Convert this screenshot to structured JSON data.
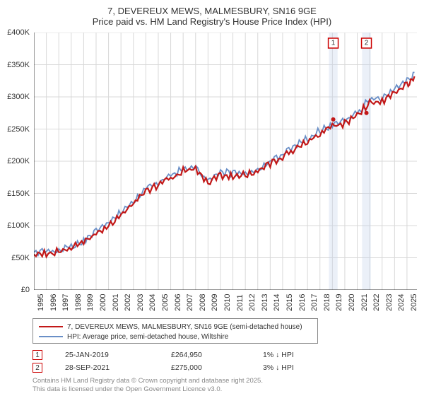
{
  "title": {
    "line1": "7, DEVEREUX MEWS, MALMESBURY, SN16 9GE",
    "line2": "Price paid vs. HM Land Registry's House Price Index (HPI)"
  },
  "chart": {
    "type": "line",
    "background_color": "#ffffff",
    "grid_color": "#d8d8d8",
    "axis_color": "#333333",
    "xlim": [
      1995,
      2025.8
    ],
    "ylim": [
      0,
      400
    ],
    "y_ticks": [
      0,
      50,
      100,
      150,
      200,
      250,
      300,
      350,
      400
    ],
    "y_tick_labels": [
      "£0",
      "£50K",
      "£100K",
      "£150K",
      "£200K",
      "£250K",
      "£300K",
      "£350K",
      "£400K"
    ],
    "x_ticks": [
      1995,
      1996,
      1997,
      1998,
      1999,
      2000,
      2001,
      2002,
      2003,
      2004,
      2005,
      2006,
      2007,
      2008,
      2009,
      2010,
      2011,
      2012,
      2013,
      2014,
      2015,
      2016,
      2017,
      2018,
      2019,
      2020,
      2021,
      2022,
      2023,
      2024,
      2025
    ],
    "label_fontsize": 11,
    "series": [
      {
        "name": "hpi",
        "label": "HPI: Average price, semi-detached house, Wiltshire",
        "color": "#6a8fc7",
        "line_width": 1.8,
        "x": [
          1995,
          1996,
          1997,
          1998,
          1999,
          2000,
          2001,
          2002,
          2003,
          2004,
          2005,
          2006,
          2007,
          2008,
          2009,
          2010,
          2011,
          2012,
          2013,
          2014,
          2015,
          2016,
          2017,
          2018,
          2019,
          2020,
          2021,
          2022,
          2023,
          2024,
          2025,
          2025.6
        ],
        "y": [
          60,
          62,
          66,
          72,
          80,
          93,
          106,
          125,
          142,
          160,
          169,
          180,
          192,
          196,
          172,
          186,
          185,
          186,
          190,
          202,
          213,
          226,
          239,
          251,
          260,
          266,
          278,
          300,
          302,
          314,
          330,
          338
        ]
      },
      {
        "name": "price",
        "label": "7, DEVEREUX MEWS, MALMESBURY, SN16 9GE (semi-detached house)",
        "color": "#c21818",
        "line_width": 2.2,
        "x": [
          1995,
          1996,
          1997,
          1998,
          1999,
          2000,
          2001,
          2002,
          2003,
          2004,
          2005,
          2006,
          2007,
          2008,
          2009,
          2010,
          2011,
          2012,
          2013,
          2014,
          2015,
          2016,
          2017,
          2018,
          2019,
          2020,
          2021,
          2022,
          2023,
          2024,
          2025,
          2025.6
        ],
        "y": [
          58,
          60,
          63,
          69,
          77,
          90,
          103,
          121,
          138,
          156,
          165,
          176,
          188,
          192,
          168,
          181,
          180,
          182,
          186,
          198,
          209,
          222,
          234,
          246,
          256,
          262,
          274,
          295,
          296,
          308,
          324,
          332
        ]
      }
    ],
    "markers": [
      {
        "n": "1",
        "x": 2019.07,
        "y": 265,
        "band_color": "#c5d4ea"
      },
      {
        "n": "2",
        "x": 2021.74,
        "y": 275,
        "band_color": "#c5d4ea"
      }
    ],
    "marker_dot_color": "#c21818",
    "marker_box_border": "#cc0000",
    "marker_band_width_years": 0.7
  },
  "legend": {
    "items": [
      {
        "color": "#c21818",
        "label": "7, DEVEREUX MEWS, MALMESBURY, SN16 9GE (semi-detached house)"
      },
      {
        "color": "#6a8fc7",
        "label": "HPI: Average price, semi-detached house, Wiltshire"
      }
    ]
  },
  "marker_table": [
    {
      "n": "1",
      "date": "25-JAN-2019",
      "price": "£264,950",
      "pct": "1% ↓ HPI"
    },
    {
      "n": "2",
      "date": "28-SEP-2021",
      "price": "£275,000",
      "pct": "3% ↓ HPI"
    }
  ],
  "attribution": {
    "line1": "Contains HM Land Registry data © Crown copyright and database right 2025.",
    "line2": "This data is licensed under the Open Government Licence v3.0."
  }
}
